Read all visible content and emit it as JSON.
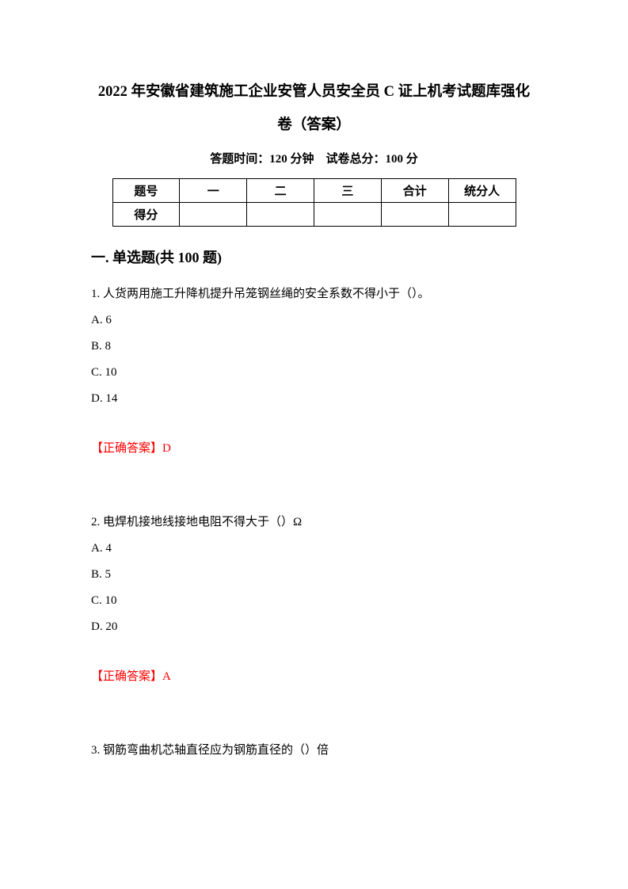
{
  "title_line1": "2022 年安徽省建筑施工企业安管人员安全员 C 证上机考试题库强化",
  "title_line2": "卷（答案）",
  "exam_info": "答题时间：120 分钟　试卷总分：100 分",
  "table": {
    "row1": [
      "题号",
      "一",
      "二",
      "三",
      "合计",
      "统分人"
    ],
    "row2_label": "得分"
  },
  "section_title": "一. 单选题(共 100 题)",
  "questions": [
    {
      "stem": "1. 人货两用施工升降机提升吊笼钢丝绳的安全系数不得小于（）。",
      "options": [
        "A. 6",
        "B. 8",
        "C. 10",
        "D. 14"
      ],
      "answer": "【正确答案】D"
    },
    {
      "stem": "2. 电焊机接地线接地电阻不得大于（）Ω",
      "options": [
        "A. 4",
        "B. 5",
        "C. 10",
        "D. 20"
      ],
      "answer": "【正确答案】A"
    },
    {
      "stem": "3. 钢筋弯曲机芯轴直径应为钢筋直径的（）倍",
      "options": [],
      "answer": ""
    }
  ]
}
